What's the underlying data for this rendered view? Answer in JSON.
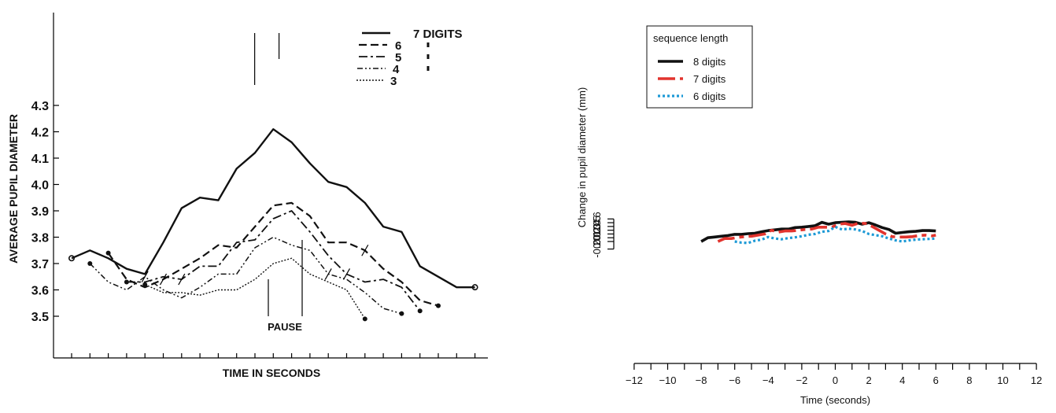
{
  "chart_data": [
    {
      "type": "line",
      "title": "",
      "xlabel": "TIME IN SECONDS",
      "ylabel": "AVERAGE PUPIL DIAMETER",
      "ylim": [
        3.4,
        4.3
      ],
      "yticks": [
        "4.3",
        "4.2",
        "4.1",
        "4.0",
        "3.9",
        "3.8",
        "3.7",
        "3.6",
        "3.5"
      ],
      "pause_label": "PAUSE",
      "legend_position": "top-right",
      "series": [
        {
          "name": "7 DIGITS",
          "x": [
            1,
            2,
            3,
            4,
            5,
            6,
            7,
            8,
            9,
            10,
            11,
            12,
            13,
            14,
            15,
            16,
            17,
            18,
            19,
            20,
            21,
            22,
            23
          ],
          "values": [
            3.72,
            3.75,
            3.72,
            3.68,
            3.66,
            3.78,
            3.91,
            3.95,
            3.94,
            4.06,
            4.12,
            4.21,
            4.16,
            4.08,
            4.01,
            3.99,
            3.93,
            3.84,
            3.82,
            3.69,
            3.65,
            3.61,
            3.61
          ]
        },
        {
          "name": "6",
          "x": [
            3,
            4,
            5,
            6,
            7,
            8,
            9,
            10,
            11,
            12,
            13,
            14,
            15,
            16,
            17,
            18,
            19,
            20,
            21
          ],
          "values": [
            3.74,
            3.64,
            3.61,
            3.64,
            3.68,
            3.72,
            3.77,
            3.76,
            3.84,
            3.92,
            3.93,
            3.88,
            3.78,
            3.78,
            3.75,
            3.68,
            3.63,
            3.56,
            3.54
          ]
        },
        {
          "name": "5",
          "x": [
            4,
            5,
            6,
            7,
            8,
            9,
            10,
            11,
            12,
            13,
            14,
            15,
            16,
            17,
            18,
            19,
            20
          ],
          "values": [
            3.63,
            3.63,
            3.65,
            3.64,
            3.69,
            3.69,
            3.78,
            3.79,
            3.87,
            3.9,
            3.82,
            3.73,
            3.66,
            3.63,
            3.64,
            3.61,
            3.52
          ]
        },
        {
          "name": "4",
          "x": [
            2,
            3,
            4,
            5,
            6,
            7,
            8,
            9,
            10,
            11,
            12,
            13,
            14,
            15,
            16,
            17,
            18,
            19
          ],
          "values": [
            3.7,
            3.63,
            3.6,
            3.65,
            3.6,
            3.57,
            3.61,
            3.66,
            3.66,
            3.76,
            3.8,
            3.77,
            3.75,
            3.66,
            3.64,
            3.59,
            3.53,
            3.51
          ]
        },
        {
          "name": "3",
          "x": [
            5,
            6,
            7,
            8,
            9,
            10,
            11,
            12,
            13,
            14,
            15,
            16,
            17
          ],
          "values": [
            3.62,
            3.59,
            3.59,
            3.58,
            3.6,
            3.6,
            3.64,
            3.7,
            3.72,
            3.66,
            3.63,
            3.6,
            3.49
          ]
        }
      ]
    },
    {
      "type": "line",
      "title": "",
      "xlabel": "Time (seconds)",
      "ylabel": "Change in pupil diameter (mm)",
      "xlim": [
        -12,
        12
      ],
      "ylim": [
        -0.2,
        0.6
      ],
      "xticks": [
        -12,
        -10,
        -8,
        -6,
        -4,
        -2,
        0,
        2,
        4,
        6,
        8,
        10,
        12
      ],
      "yticks": [
        -0.2,
        0.0,
        0.1,
        0.2,
        0.3,
        0.4,
        0.5,
        0.6
      ],
      "legend_title": "sequence length",
      "legend_position": "top-left",
      "series": [
        {
          "name": "8 digits",
          "color": "#111111",
          "dash": "",
          "x": [
            -8,
            -7.6,
            -7.2,
            -6.8,
            -6.4,
            -6,
            -5.6,
            -5.2,
            -4.8,
            -4.4,
            -4,
            -3.6,
            -3.2,
            -2.8,
            -2.4,
            -2,
            -1.6,
            -1.2,
            -0.8,
            -0.4,
            0,
            0.4,
            0.8,
            1.2,
            1.6,
            2,
            2.4,
            2.8,
            3.2,
            3.6,
            4,
            4.4,
            4.8,
            5.2,
            5.6,
            6
          ],
          "values": [
            0.0,
            0.1,
            0.12,
            0.14,
            0.16,
            0.19,
            0.19,
            0.21,
            0.22,
            0.26,
            0.29,
            0.31,
            0.33,
            0.33,
            0.37,
            0.38,
            0.4,
            0.42,
            0.51,
            0.46,
            0.5,
            0.51,
            0.52,
            0.51,
            0.46,
            0.5,
            0.44,
            0.37,
            0.32,
            0.22,
            0.24,
            0.26,
            0.27,
            0.29,
            0.29,
            0.28
          ]
        },
        {
          "name": "7 digits",
          "color": "#e2342e",
          "dash": "22 6 6 6",
          "x": [
            -7,
            -6.6,
            -6.2,
            -5.8,
            -5.4,
            -5,
            -4.6,
            -4.2,
            -3.8,
            -3.4,
            -3,
            -2.6,
            -2.2,
            -1.8,
            -1.4,
            -1,
            -0.6,
            -0.2,
            0.2,
            0.6,
            1,
            1.4,
            1.8,
            2.2,
            2.6,
            3,
            3.4,
            3.8,
            4.2,
            4.6,
            5,
            5.4,
            5.8,
            6
          ],
          "values": [
            0.0,
            0.08,
            0.08,
            0.11,
            0.13,
            0.14,
            0.17,
            0.2,
            0.3,
            0.25,
            0.28,
            0.28,
            0.3,
            0.32,
            0.33,
            0.38,
            0.38,
            0.38,
            0.46,
            0.48,
            0.43,
            0.49,
            0.48,
            0.4,
            0.3,
            0.2,
            0.13,
            0.12,
            0.12,
            0.13,
            0.16,
            0.17,
            0.15,
            0.17
          ]
        },
        {
          "name": "6 digits",
          "color": "#1e9ad6",
          "dash": "3 3",
          "x": [
            -6,
            -5.6,
            -5.2,
            -4.8,
            -4.4,
            -4,
            -3.6,
            -3.2,
            -2.8,
            -2.4,
            -2,
            -1.6,
            -1.2,
            -0.8,
            -0.4,
            0,
            0.4,
            0.8,
            1.2,
            1.6,
            2,
            2.4,
            2.8,
            3.2,
            3.6,
            4,
            4.4,
            4.8,
            5.2,
            5.6,
            6
          ],
          "values": [
            0.0,
            -0.03,
            -0.04,
            0.02,
            0.05,
            0.12,
            0.08,
            0.06,
            0.09,
            0.11,
            0.14,
            0.18,
            0.2,
            0.26,
            0.28,
            0.39,
            0.32,
            0.34,
            0.32,
            0.28,
            0.2,
            0.17,
            0.14,
            0.08,
            0.03,
            0.0,
            0.03,
            0.05,
            0.06,
            0.07,
            0.08
          ]
        }
      ]
    }
  ]
}
